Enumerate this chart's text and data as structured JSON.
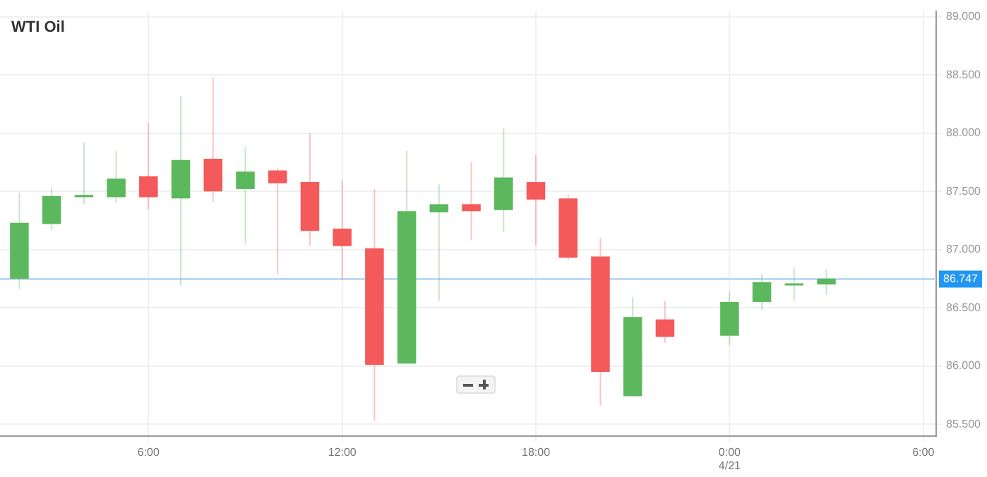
{
  "chart_data": {
    "type": "candlestick",
    "title": "WTI Oil",
    "x": [
      "--04-20T02:00",
      "--04-20T03:00",
      "--04-20T04:00",
      "--04-20T05:00",
      "--04-20T06:00",
      "--04-20T07:00",
      "--04-20T08:00",
      "--04-20T09:00",
      "--04-20T10:00",
      "--04-20T11:00",
      "--04-20T12:00",
      "--04-20T13:00",
      "--04-20T14:00",
      "--04-20T15:00",
      "--04-20T16:00",
      "--04-20T17:00",
      "--04-20T18:00",
      "--04-20T19:00",
      "--04-20T20:00",
      "--04-20T21:00",
      "--04-20T22:00",
      "--04-21T00:00",
      "--04-21T01:00",
      "--04-21T02:00",
      "--04-21T03:00"
    ],
    "ohlc": [
      [
        86.75,
        87.49,
        86.66,
        87.23
      ],
      [
        87.22,
        87.53,
        87.17,
        87.46
      ],
      [
        87.45,
        87.92,
        87.39,
        87.47
      ],
      [
        87.45,
        87.85,
        87.4,
        87.61
      ],
      [
        87.63,
        88.09,
        87.34,
        87.45
      ],
      [
        87.44,
        88.32,
        86.69,
        87.77
      ],
      [
        87.78,
        88.48,
        87.41,
        87.5
      ],
      [
        87.52,
        87.88,
        87.05,
        87.67
      ],
      [
        87.68,
        87.7,
        86.79,
        87.57
      ],
      [
        87.58,
        88.0,
        87.03,
        87.16
      ],
      [
        87.18,
        87.6,
        86.74,
        87.03
      ],
      [
        87.01,
        87.52,
        85.53,
        86.01
      ],
      [
        86.02,
        87.85,
        86.02,
        87.33
      ],
      [
        87.32,
        87.56,
        86.56,
        87.39
      ],
      [
        87.39,
        87.75,
        87.08,
        87.33
      ],
      [
        87.34,
        88.04,
        87.15,
        87.62
      ],
      [
        87.58,
        87.81,
        87.04,
        87.43
      ],
      [
        87.44,
        87.47,
        86.91,
        86.93
      ],
      [
        86.94,
        87.1,
        85.66,
        85.95
      ],
      [
        85.74,
        86.59,
        85.74,
        86.42
      ],
      [
        86.4,
        86.56,
        86.2,
        86.25
      ],
      [
        86.26,
        86.64,
        86.18,
        86.55
      ],
      [
        86.55,
        86.79,
        86.48,
        86.72
      ],
      [
        86.7,
        86.84,
        86.56,
        86.71
      ],
      [
        86.7,
        86.83,
        86.61,
        86.75
      ]
    ],
    "colors": [
      "#5cb85c",
      "#5cb85c",
      "#5cb85c",
      "#5cb85c",
      "#f45a5a",
      "#5cb85c",
      "#f45a5a",
      "#5cb85c",
      "#f45a5a",
      "#f45a5a",
      "#f45a5a",
      "#f45a5a",
      "#5cb85c",
      "#5cb85c",
      "#f45a5a",
      "#5cb85c",
      "#f45a5a",
      "#f45a5a",
      "#f45a5a",
      "#5cb85c",
      "#f45a5a",
      "#5cb85c",
      "#5cb85c",
      "#5cb85c",
      "#5cb85c"
    ],
    "xlim": [
      "--04-20T01:24",
      "--04-21T06:24"
    ],
    "xticks": [
      {
        "value": "--04-20T06:00",
        "label": "6:00"
      },
      {
        "value": "--04-20T12:00",
        "label": "12:00"
      },
      {
        "value": "--04-20T18:00",
        "label": "18:00"
      },
      {
        "value": "--04-21T00:00",
        "label": "0:00\n4/21"
      },
      {
        "value": "--04-21T06:00",
        "label": "6:00"
      }
    ],
    "ylim": [
      85.4,
      89.05
    ],
    "yticks": [
      {
        "value": 85.5,
        "label": "85.500"
      },
      {
        "value": 86,
        "label": "86.000"
      },
      {
        "value": 86.5,
        "label": "86.500"
      },
      {
        "value": 87,
        "label": "87.000"
      },
      {
        "value": 87.5,
        "label": "87.500"
      },
      {
        "value": 88,
        "label": "88.000"
      },
      {
        "value": 88.5,
        "label": "88.500"
      },
      {
        "value": 89,
        "label": "89.000"
      }
    ],
    "ref_lines": [
      {
        "axis": "y",
        "value": 86.747,
        "label": "86.747",
        "color": "#bcdcf5"
      }
    ],
    "grid": true
  }
}
